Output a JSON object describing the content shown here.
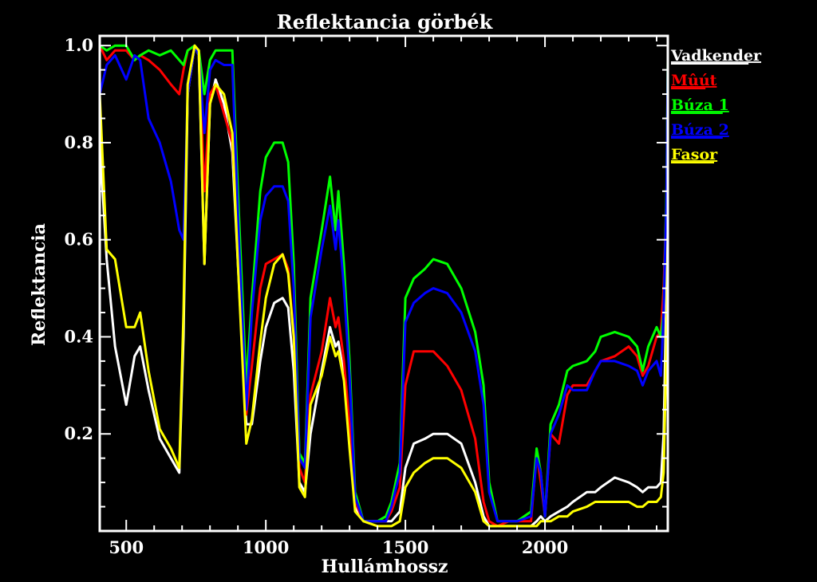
{
  "chart_data": {
    "type": "line",
    "title": "Reflektancia görbék",
    "xlabel": "Hullámhossz",
    "ylabel": "Reflektancia",
    "xlim": [
      405,
      2440
    ],
    "ylim": [
      0.0,
      1.02
    ],
    "x_ticks": [
      500,
      1000,
      1500,
      2000
    ],
    "x_tick_labels": [
      "500",
      "1000",
      "1500",
      "2000"
    ],
    "y_ticks": [
      0.2,
      0.4,
      0.6,
      0.8,
      1.0
    ],
    "y_tick_labels": [
      "0.2",
      "0.4",
      "0.6",
      "0.8",
      "1.0"
    ],
    "legend_position": "right",
    "grid": false,
    "x": [
      405,
      430,
      460,
      500,
      530,
      550,
      580,
      620,
      660,
      690,
      705,
      720,
      745,
      760,
      780,
      800,
      820,
      850,
      880,
      900,
      930,
      950,
      980,
      1000,
      1030,
      1060,
      1080,
      1100,
      1120,
      1140,
      1160,
      1200,
      1230,
      1250,
      1260,
      1280,
      1300,
      1320,
      1350,
      1400,
      1430,
      1450,
      1480,
      1500,
      1530,
      1570,
      1600,
      1650,
      1700,
      1750,
      1780,
      1800,
      1830,
      1870,
      1900,
      1950,
      1970,
      1985,
      2000,
      2020,
      2050,
      2080,
      2100,
      2150,
      2180,
      2200,
      2250,
      2300,
      2330,
      2350,
      2370,
      2400,
      2415,
      2425,
      2435,
      2440
    ],
    "series": [
      {
        "name": "Vadkender",
        "color": "#ffffff",
        "values": [
          0.8,
          0.56,
          0.38,
          0.26,
          0.36,
          0.38,
          0.29,
          0.19,
          0.15,
          0.12,
          0.4,
          0.9,
          1.0,
          0.98,
          0.55,
          0.88,
          0.93,
          0.88,
          0.78,
          0.55,
          0.22,
          0.22,
          0.35,
          0.42,
          0.47,
          0.48,
          0.46,
          0.33,
          0.1,
          0.08,
          0.2,
          0.33,
          0.42,
          0.38,
          0.39,
          0.32,
          0.2,
          0.05,
          0.02,
          0.02,
          0.02,
          0.02,
          0.04,
          0.13,
          0.18,
          0.19,
          0.2,
          0.2,
          0.18,
          0.1,
          0.03,
          0.01,
          0.01,
          0.01,
          0.01,
          0.01,
          0.02,
          0.03,
          0.02,
          0.03,
          0.04,
          0.05,
          0.06,
          0.08,
          0.08,
          0.09,
          0.11,
          0.1,
          0.09,
          0.08,
          0.09,
          0.09,
          0.1,
          0.2,
          0.5,
          0.88
        ]
      },
      {
        "name": "Mûút",
        "color": "#ff0000",
        "values": [
          1.0,
          0.97,
          0.99,
          0.99,
          0.97,
          0.98,
          0.97,
          0.95,
          0.92,
          0.9,
          0.95,
          0.99,
          1.0,
          0.99,
          0.7,
          0.9,
          0.92,
          0.86,
          0.8,
          0.6,
          0.24,
          0.34,
          0.5,
          0.55,
          0.56,
          0.57,
          0.54,
          0.4,
          0.13,
          0.1,
          0.28,
          0.37,
          0.48,
          0.42,
          0.44,
          0.35,
          0.22,
          0.06,
          0.02,
          0.02,
          0.02,
          0.04,
          0.09,
          0.3,
          0.37,
          0.37,
          0.37,
          0.34,
          0.29,
          0.19,
          0.06,
          0.02,
          0.01,
          0.02,
          0.02,
          0.02,
          0.16,
          0.1,
          0.03,
          0.2,
          0.18,
          0.28,
          0.3,
          0.3,
          0.33,
          0.35,
          0.36,
          0.38,
          0.36,
          0.32,
          0.34,
          0.4,
          0.41,
          0.5,
          0.68,
          0.9
        ]
      },
      {
        "name": "Búza 1",
        "color": "#00ff00",
        "values": [
          1.0,
          0.99,
          1.0,
          1.0,
          0.97,
          0.98,
          0.99,
          0.98,
          0.99,
          0.97,
          0.96,
          0.99,
          1.0,
          0.99,
          0.9,
          0.97,
          0.99,
          0.99,
          0.99,
          0.7,
          0.3,
          0.48,
          0.7,
          0.77,
          0.8,
          0.8,
          0.76,
          0.55,
          0.16,
          0.14,
          0.48,
          0.62,
          0.73,
          0.62,
          0.7,
          0.55,
          0.35,
          0.08,
          0.02,
          0.02,
          0.03,
          0.06,
          0.14,
          0.48,
          0.52,
          0.54,
          0.56,
          0.55,
          0.5,
          0.41,
          0.3,
          0.1,
          0.02,
          0.02,
          0.02,
          0.04,
          0.17,
          0.12,
          0.03,
          0.22,
          0.26,
          0.33,
          0.34,
          0.35,
          0.37,
          0.4,
          0.41,
          0.4,
          0.38,
          0.33,
          0.38,
          0.42,
          0.4,
          0.45,
          0.7,
          0.97
        ]
      },
      {
        "name": "Búza 2",
        "color": "#0000ff",
        "values": [
          0.9,
          0.96,
          0.98,
          0.93,
          0.98,
          0.97,
          0.85,
          0.8,
          0.72,
          0.62,
          0.6,
          0.9,
          1.0,
          0.98,
          0.82,
          0.95,
          0.97,
          0.96,
          0.96,
          0.65,
          0.25,
          0.45,
          0.64,
          0.69,
          0.71,
          0.71,
          0.68,
          0.5,
          0.15,
          0.13,
          0.44,
          0.58,
          0.67,
          0.58,
          0.64,
          0.5,
          0.32,
          0.07,
          0.02,
          0.02,
          0.02,
          0.05,
          0.12,
          0.43,
          0.47,
          0.49,
          0.5,
          0.49,
          0.45,
          0.37,
          0.26,
          0.08,
          0.02,
          0.02,
          0.02,
          0.03,
          0.15,
          0.12,
          0.03,
          0.2,
          0.24,
          0.3,
          0.29,
          0.29,
          0.33,
          0.35,
          0.35,
          0.34,
          0.33,
          0.3,
          0.33,
          0.35,
          0.32,
          0.45,
          0.68,
          0.96
        ]
      },
      {
        "name": "Fasor",
        "color": "#ffff00",
        "values": [
          0.9,
          0.58,
          0.56,
          0.42,
          0.42,
          0.45,
          0.33,
          0.21,
          0.17,
          0.13,
          0.45,
          0.92,
          1.0,
          0.99,
          0.55,
          0.88,
          0.92,
          0.9,
          0.82,
          0.55,
          0.18,
          0.23,
          0.39,
          0.48,
          0.55,
          0.57,
          0.53,
          0.4,
          0.09,
          0.07,
          0.26,
          0.32,
          0.4,
          0.36,
          0.37,
          0.31,
          0.17,
          0.04,
          0.02,
          0.01,
          0.01,
          0.01,
          0.02,
          0.09,
          0.12,
          0.14,
          0.15,
          0.15,
          0.13,
          0.08,
          0.02,
          0.01,
          0.01,
          0.01,
          0.01,
          0.01,
          0.01,
          0.02,
          0.02,
          0.02,
          0.03,
          0.03,
          0.04,
          0.05,
          0.06,
          0.06,
          0.06,
          0.06,
          0.05,
          0.05,
          0.06,
          0.06,
          0.07,
          0.12,
          0.38,
          0.62
        ]
      }
    ]
  }
}
